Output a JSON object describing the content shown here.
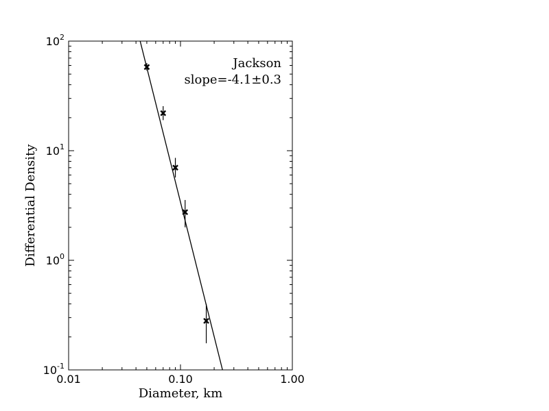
{
  "chart_data": {
    "type": "scatter",
    "xlabel": "Diameter, km",
    "ylabel": "Differential Density",
    "xscale": "log",
    "yscale": "log",
    "xlim": [
      0.01,
      1.0
    ],
    "ylim": [
      0.1,
      100
    ],
    "x_ticks": [
      {
        "value": 0.01,
        "label": "0.01"
      },
      {
        "value": 0.1,
        "label": "0.10"
      },
      {
        "value": 1.0,
        "label": "1.00"
      }
    ],
    "y_ticks": [
      {
        "value": 0.1,
        "mantissa": "10",
        "exp": "-1"
      },
      {
        "value": 1,
        "mantissa": "10",
        "exp": "0"
      },
      {
        "value": 10,
        "mantissa": "10",
        "exp": "1"
      },
      {
        "value": 100,
        "mantissa": "10",
        "exp": "2"
      }
    ],
    "annotation": {
      "title": "Jackson",
      "slope_text": "slope=-4.1±0.3"
    },
    "grid": false,
    "series": [
      {
        "marker": "x",
        "color": "#000000",
        "points": [
          {
            "x": 0.05,
            "y": 58.0,
            "ylo": 54.0,
            "yhi": 63.0
          },
          {
            "x": 0.07,
            "y": 22.0,
            "ylo": 19.0,
            "yhi": 25.5
          },
          {
            "x": 0.09,
            "y": 7.0,
            "ylo": 5.7,
            "yhi": 8.6
          },
          {
            "x": 0.11,
            "y": 2.75,
            "ylo": 2.0,
            "yhi": 3.55
          },
          {
            "x": 0.17,
            "y": 0.28,
            "ylo": 0.175,
            "yhi": 0.4
          }
        ]
      }
    ],
    "fit_line": {
      "color": "#000000",
      "points": [
        {
          "x": 0.0436,
          "y": 100
        },
        {
          "x": 0.2375,
          "y": 0.1
        }
      ]
    }
  }
}
